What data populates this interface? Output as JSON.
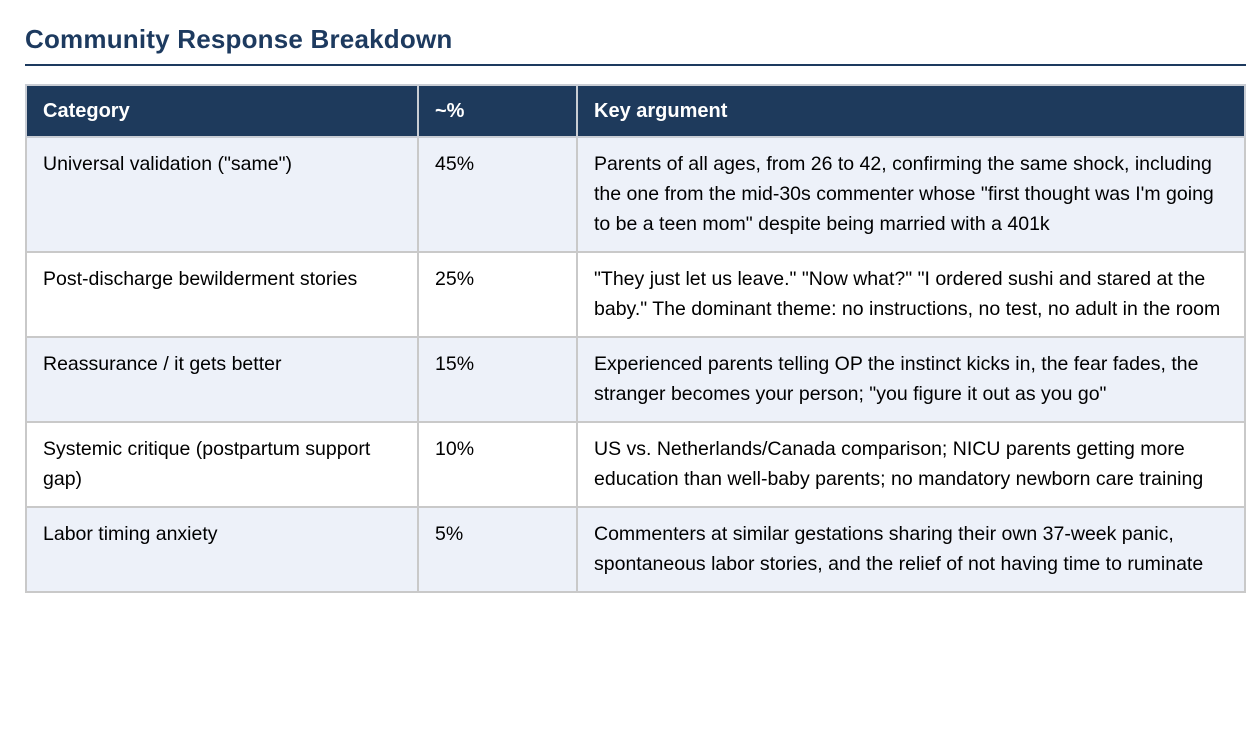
{
  "page": {
    "title": "Community Response Breakdown"
  },
  "colors": {
    "title_navy": "#1d3a5f",
    "header_background": "#1e3a5c",
    "header_text": "#ffffff",
    "stripe_row_background": "#edf1f9",
    "plain_row_background": "#ffffff",
    "border_gray": "#c9c9c9",
    "body_text": "#000000"
  },
  "table": {
    "columns": [
      {
        "label": "Category"
      },
      {
        "label": "~%"
      },
      {
        "label": "Key argument"
      }
    ],
    "rows": [
      {
        "category": "Universal validation (\"same\")",
        "percent": "45%",
        "key_argument": "Parents of all ages, from 26 to 42, confirming the same shock, including the one from the mid-30s commenter whose \"first thought was I'm going to be a teen mom\" despite being married with a 401k"
      },
      {
        "category": "Post-discharge bewilderment stories",
        "percent": "25%",
        "key_argument": "\"They just let us leave.\" \"Now what?\" \"I ordered sushi and stared at the baby.\" The dominant theme: no instructions, no test, no adult in the room"
      },
      {
        "category": "Reassurance / it gets better",
        "percent": "15%",
        "key_argument": "Experienced parents telling OP the instinct kicks in, the fear fades, the stranger becomes your person; \"you figure it out as you go\""
      },
      {
        "category": "Systemic critique (postpartum support gap)",
        "percent": "10%",
        "key_argument": "US vs. Netherlands/Canada comparison; NICU parents getting more education than well-baby parents; no mandatory newborn care training"
      },
      {
        "category": "Labor timing anxiety",
        "percent": "5%",
        "key_argument": "Commenters at similar gestations sharing their own 37-week panic, spontaneous labor stories, and the relief of not having time to ruminate"
      }
    ]
  }
}
